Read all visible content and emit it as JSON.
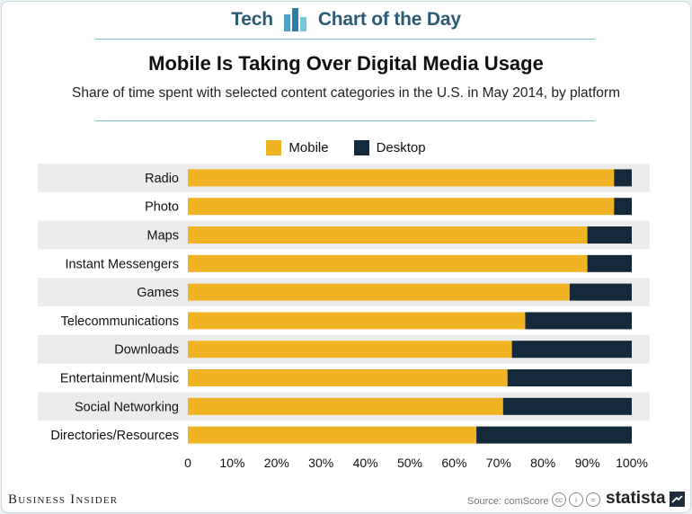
{
  "header": {
    "left": "Tech",
    "right": "Chart of the Day"
  },
  "chart_data": {
    "type": "bar",
    "orientation": "horizontal",
    "stacked": true,
    "title": "Mobile Is Taking Over Digital Media Usage",
    "subtitle": "Share of time spent with selected content categories in the U.S. in May 2014, by platform",
    "categories": [
      "Radio",
      "Photo",
      "Maps",
      "Instant Messengers",
      "Games",
      "Telecommunications",
      "Downloads",
      "Entertainment/Music",
      "Social Networking",
      "Directories/Resources"
    ],
    "series": [
      {
        "name": "Mobile",
        "color": "#f0b323",
        "values": [
          96,
          96,
          90,
          90,
          86,
          76,
          73,
          72,
          71,
          65
        ]
      },
      {
        "name": "Desktop",
        "color": "#142a3b",
        "values": [
          4,
          4,
          10,
          10,
          14,
          24,
          27,
          28,
          29,
          35
        ]
      }
    ],
    "x_ticks": [
      "0",
      "10%",
      "20%",
      "30%",
      "40%",
      "50%",
      "60%",
      "70%",
      "80%",
      "90%",
      "100%"
    ],
    "xlim": [
      0,
      100
    ],
    "legend_position": "top-center"
  },
  "footer": {
    "publisher": "Business Insider",
    "source": "Source: comScore",
    "brand": "statista"
  },
  "colors": {
    "accent": "#2b5b73",
    "rule": "#7fb8c6",
    "band": "#ececec"
  }
}
